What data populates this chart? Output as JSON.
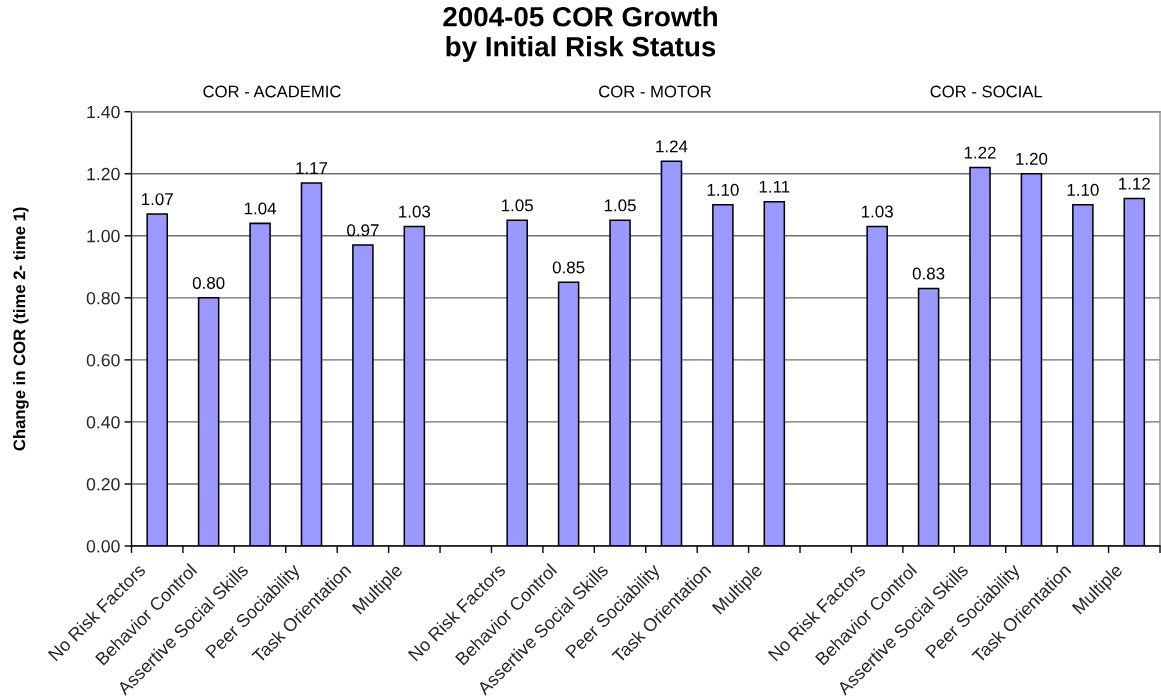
{
  "chart_data": {
    "type": "bar",
    "title": "2004-05 COR Growth\nby Initial Risk Status",
    "ylabel": "Change in COR (time 2- time 1)",
    "annotations": [
      "COR - ACADEMIC",
      "COR - MOTOR",
      "COR - SOCIAL"
    ],
    "categories": [
      "No Risk Factors",
      "Behavior Control",
      "Assertive Social Skills",
      "Peer Sociability",
      "Task Orientation",
      "Multiple",
      null,
      "No Risk Factors",
      "Behavior Control",
      "Assertive Social Skills",
      "Peer Sociability",
      "Task Orientation",
      "Multiple",
      null,
      "No Risk Factors",
      "Behavior Control",
      "Assertive Social Skills",
      "Peer Sociability",
      "Task Orientation",
      "Multiple"
    ],
    "values": [
      1.07,
      0.8,
      1.04,
      1.17,
      0.97,
      1.03,
      null,
      1.05,
      0.85,
      1.05,
      1.24,
      1.1,
      1.11,
      null,
      1.03,
      0.83,
      1.22,
      1.2,
      1.1,
      1.12
    ],
    "value_labels": [
      "1.07",
      "0.80",
      "1.04",
      "1.17",
      "0.97",
      "1.03",
      null,
      "1.05",
      "0.85",
      "1.05",
      "1.24",
      "1.10",
      "1.11",
      null,
      "1.03",
      "0.83",
      "1.22",
      "1.20",
      "1.10",
      "1.12"
    ],
    "color": "#9999ff",
    "ylim": [
      0,
      1.4
    ],
    "yticks": [
      {
        "value": 0,
        "label": "0.00"
      },
      {
        "value": 0.2,
        "label": "0.20"
      },
      {
        "value": 0.4,
        "label": "0.40"
      },
      {
        "value": 0.6,
        "label": "0.60"
      },
      {
        "value": 0.8,
        "label": "0.80"
      },
      {
        "value": 1.0,
        "label": "1.00"
      },
      {
        "value": 1.2,
        "label": "1.20"
      },
      {
        "value": 1.4,
        "label": "1.40"
      }
    ],
    "grid": "y"
  }
}
